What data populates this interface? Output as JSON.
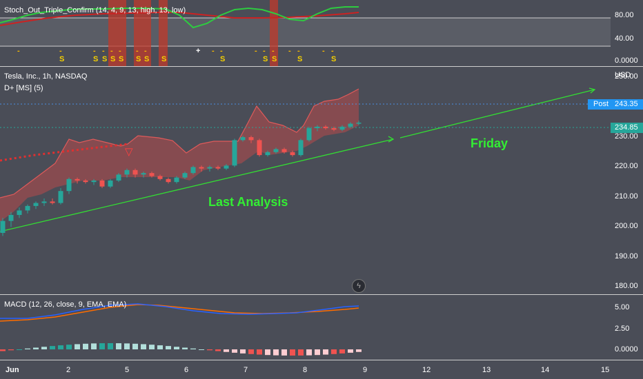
{
  "stoch": {
    "title": "Stoch_Out_Triple_Confirm (14, 4, 9, 13, high, 13, low)",
    "ticks": [
      "80.00",
      "40.00",
      "0.0000"
    ],
    "marks": [
      {
        "x": 28,
        "row1": "-",
        "row2": ""
      },
      {
        "x": 89,
        "row1": "-",
        "row2": "S"
      },
      {
        "x": 138,
        "row1": "-",
        "row2": "S"
      },
      {
        "x": 151,
        "row1": "-",
        "row2": "S"
      },
      {
        "x": 163,
        "row1": "-",
        "row2": "S"
      },
      {
        "x": 175,
        "row1": "-",
        "row2": "S"
      },
      {
        "x": 200,
        "row1": "-",
        "row2": "S"
      },
      {
        "x": 212,
        "row1": "-",
        "row2": "S"
      },
      {
        "x": 237,
        "row1": "",
        "row2": "S"
      },
      {
        "x": 287,
        "row1": "+",
        "row2": ""
      },
      {
        "x": 310,
        "row1": "-",
        "row2": ""
      },
      {
        "x": 322,
        "row1": "-",
        "row2": "S"
      },
      {
        "x": 372,
        "row1": "-",
        "row2": ""
      },
      {
        "x": 384,
        "row1": "-",
        "row2": "S"
      },
      {
        "x": 397,
        "row1": "-",
        "row2": "S"
      },
      {
        "x": 421,
        "row1": "-",
        "row2": ""
      },
      {
        "x": 434,
        "row1": "-",
        "row2": "S"
      },
      {
        "x": 470,
        "row1": "-",
        "row2": ""
      },
      {
        "x": 483,
        "row1": "-",
        "row2": "S"
      }
    ]
  },
  "main": {
    "symbol": "Tesla, Inc., 1h, NASDAQ",
    "indicator": "D+ [MS] (5)",
    "currency": "USD",
    "post_label": "Post",
    "post_price": "243.35",
    "last_price": "234.85",
    "annotation_last": "Last Analysis",
    "annotation_friday": "Friday"
  },
  "macd": {
    "title": "MACD (12, 26, close, 9, EMA, EMA)",
    "ticks": [
      "5.00",
      "2.50",
      "0.0000"
    ]
  },
  "xaxis": {
    "ticks": [
      {
        "label": "Jun",
        "x": 14
      },
      {
        "label": "2",
        "x": 102
      },
      {
        "label": "5",
        "x": 187
      },
      {
        "label": "6",
        "x": 273
      },
      {
        "label": "7",
        "x": 359
      },
      {
        "label": "8",
        "x": 445
      },
      {
        "label": "9",
        "x": 532
      },
      {
        "label": "12",
        "x": 618
      },
      {
        "label": "13",
        "x": 705
      },
      {
        "label": "14",
        "x": 790
      },
      {
        "label": "15",
        "x": 877
      }
    ]
  },
  "colors": {
    "bg": "#4a4d57",
    "up": "#26a69a",
    "down": "#ef5350",
    "trend": "#33dd33",
    "annotation": "#33ee33",
    "fast_line": "#2ecc40",
    "slow_line": "#cc2222",
    "macd_line": "#2962ff",
    "signal_line": "#ff6d00",
    "post_badge": "#2196f3",
    "last_badge": "#26a69a"
  },
  "chart_data": {
    "type": "candlestick",
    "y_axis": {
      "ticks": [
        250,
        240,
        230,
        220,
        210,
        200,
        190,
        180
      ],
      "ylim": [
        177.5,
        253.5
      ]
    },
    "candles": [
      {
        "o": 198,
        "h": 203,
        "l": 197,
        "c": 202
      },
      {
        "o": 202,
        "h": 205,
        "l": 200,
        "c": 204
      },
      {
        "o": 204,
        "h": 206.5,
        "l": 203,
        "c": 205.5
      },
      {
        "o": 205.5,
        "h": 207.5,
        "l": 204.5,
        "c": 207
      },
      {
        "o": 207,
        "h": 208.5,
        "l": 206,
        "c": 208
      },
      {
        "o": 208,
        "h": 209.5,
        "l": 207,
        "c": 208.5
      },
      {
        "o": 208.5,
        "h": 209.5,
        "l": 207.5,
        "c": 208
      },
      {
        "o": 208,
        "h": 213,
        "l": 207.5,
        "c": 212
      },
      {
        "o": 212,
        "h": 216.5,
        "l": 211,
        "c": 216
      },
      {
        "o": 216,
        "h": 216.5,
        "l": 214.5,
        "c": 215.5
      },
      {
        "o": 215.5,
        "h": 216,
        "l": 214.5,
        "c": 215
      },
      {
        "o": 215,
        "h": 216,
        "l": 214,
        "c": 215.5
      },
      {
        "o": 215.5,
        "h": 216,
        "l": 213,
        "c": 213.5
      },
      {
        "o": 213.5,
        "h": 216,
        "l": 213,
        "c": 215.5
      },
      {
        "o": 215.5,
        "h": 218,
        "l": 215,
        "c": 217.5
      },
      {
        "o": 217.5,
        "h": 219.5,
        "l": 216.5,
        "c": 219
      },
      {
        "o": 219,
        "h": 219.5,
        "l": 216.5,
        "c": 217.5
      },
      {
        "o": 217.5,
        "h": 218.5,
        "l": 216.5,
        "c": 218
      },
      {
        "o": 218,
        "h": 218.5,
        "l": 216.5,
        "c": 217
      },
      {
        "o": 217,
        "h": 217.5,
        "l": 215.5,
        "c": 216
      },
      {
        "o": 216,
        "h": 216.5,
        "l": 214.5,
        "c": 215
      },
      {
        "o": 215,
        "h": 217,
        "l": 214.5,
        "c": 216.5
      },
      {
        "o": 216.5,
        "h": 218.5,
        "l": 216,
        "c": 218
      },
      {
        "o": 218,
        "h": 220.5,
        "l": 217.5,
        "c": 220
      },
      {
        "o": 220,
        "h": 220.5,
        "l": 218.5,
        "c": 219.5
      },
      {
        "o": 219.5,
        "h": 220.5,
        "l": 218.5,
        "c": 220
      },
      {
        "o": 220,
        "h": 220.5,
        "l": 219,
        "c": 219.5
      },
      {
        "o": 219.5,
        "h": 221,
        "l": 219,
        "c": 220.5
      },
      {
        "o": 220.5,
        "h": 229.5,
        "l": 220,
        "c": 229
      },
      {
        "o": 229,
        "h": 230.5,
        "l": 228.5,
        "c": 230
      },
      {
        "o": 230,
        "h": 230.5,
        "l": 228,
        "c": 229
      },
      {
        "o": 229,
        "h": 229.5,
        "l": 223.5,
        "c": 224
      },
      {
        "o": 224,
        "h": 225.5,
        "l": 223.5,
        "c": 225
      },
      {
        "o": 225,
        "h": 226.5,
        "l": 224.5,
        "c": 226
      },
      {
        "o": 226,
        "h": 226.5,
        "l": 224.5,
        "c": 225
      },
      {
        "o": 225,
        "h": 225.5,
        "l": 223.5,
        "c": 224
      },
      {
        "o": 224,
        "h": 229.5,
        "l": 223.5,
        "c": 229
      },
      {
        "o": 229,
        "h": 233.5,
        "l": 228.5,
        "c": 233
      },
      {
        "o": 233,
        "h": 234,
        "l": 232,
        "c": 233.5
      },
      {
        "o": 233.5,
        "h": 234,
        "l": 232.5,
        "c": 233
      },
      {
        "o": 233,
        "h": 233.5,
        "l": 232,
        "c": 232.5
      },
      {
        "o": 232.5,
        "h": 234,
        "l": 232,
        "c": 233.5
      },
      {
        "o": 233.5,
        "h": 235,
        "l": 233,
        "c": 234.5
      },
      {
        "o": 234.5,
        "h": 235.5,
        "l": 234,
        "c": 234.85
      }
    ]
  }
}
